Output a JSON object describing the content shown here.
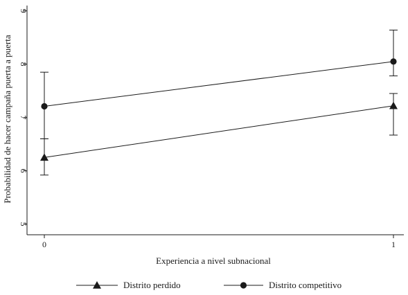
{
  "chart_data": {
    "type": "line",
    "title": "",
    "xlabel": "Experiencia a nivel subnacional",
    "ylabel": "Probabilidad de hacer campaña puerta a puerta",
    "x": [
      0,
      1
    ],
    "x_ticks": [
      "0",
      "1"
    ],
    "xlim": [
      0,
      1
    ],
    "ylim": [
      4.8,
      9.1
    ],
    "y_ticks": [
      "5",
      "6",
      "7",
      "8",
      "9"
    ],
    "y_tick_values": [
      5,
      6,
      7,
      8,
      9
    ],
    "y_tick_rotation": "rotated",
    "grid": false,
    "legend_position": "bottom",
    "series": [
      {
        "name": "Distrito perdido",
        "marker": "triangle",
        "values": [
          6.25,
          7.22
        ],
        "ci_lower": [
          5.92,
          6.67
        ],
        "ci_upper": [
          6.6,
          7.45
        ]
      },
      {
        "name": "Distrito competitivo",
        "marker": "circle",
        "values": [
          7.21,
          8.05
        ],
        "ci_lower": [
          6.6,
          7.78
        ],
        "ci_upper": [
          7.85,
          8.64
        ]
      }
    ],
    "colors": {
      "ink": "#1a1a1a",
      "background": "#ffffff"
    }
  }
}
